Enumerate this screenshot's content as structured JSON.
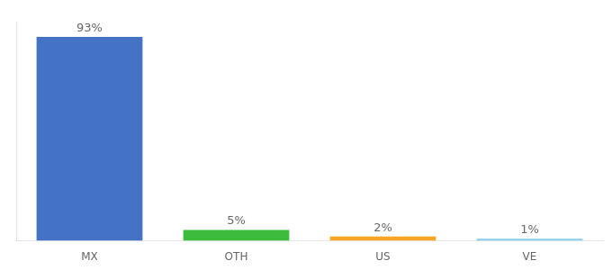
{
  "chart_data": {
    "type": "bar",
    "categories": [
      "MX",
      "OTH",
      "US",
      "VE"
    ],
    "values": [
      93,
      5,
      2,
      1
    ],
    "value_labels": [
      "93%",
      "5%",
      "2%",
      "1%"
    ],
    "colors": [
      "#4472c4",
      "#3dbb3d",
      "#f5a623",
      "#87ceeb"
    ],
    "ylim": [
      0,
      100
    ],
    "grid": false,
    "data_labels": true,
    "tick_labels": "x"
  }
}
